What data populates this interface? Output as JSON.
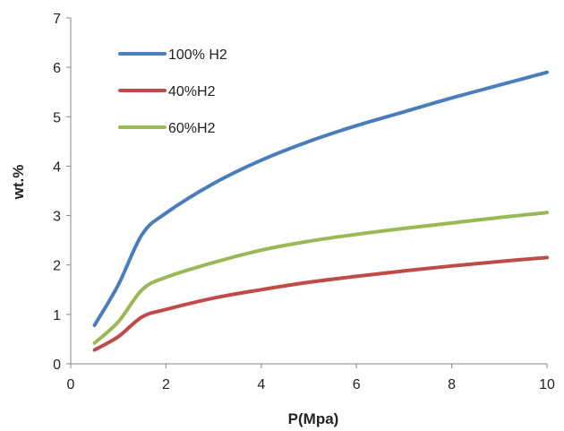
{
  "chart_data": {
    "type": "line",
    "title": "",
    "xlabel": "P(Mpa)",
    "ylabel": "wt.%",
    "xlim": [
      0,
      10
    ],
    "ylim": [
      0,
      7
    ],
    "xticks": [
      0,
      2,
      4,
      6,
      8,
      10
    ],
    "yticks": [
      0,
      1,
      2,
      3,
      4,
      5,
      6,
      7
    ],
    "grid": false,
    "legend_position": "top-left",
    "series": [
      {
        "name": "100% H2",
        "color": "#4a7ebb",
        "x": [
          0.5,
          1.0,
          1.5,
          2.0,
          3.0,
          4.0,
          5.0,
          6.0,
          7.0,
          8.0,
          9.0,
          10.0
        ],
        "y": [
          0.78,
          1.6,
          2.62,
          3.05,
          3.65,
          4.12,
          4.5,
          4.82,
          5.1,
          5.38,
          5.64,
          5.9
        ]
      },
      {
        "name": "40%H2",
        "color": "#be4b48",
        "x": [
          0.5,
          1.0,
          1.5,
          2.0,
          3.0,
          4.0,
          5.0,
          6.0,
          7.0,
          8.0,
          9.0,
          10.0
        ],
        "y": [
          0.28,
          0.55,
          0.95,
          1.1,
          1.33,
          1.5,
          1.65,
          1.77,
          1.88,
          1.98,
          2.07,
          2.15
        ]
      },
      {
        "name": "60%H2",
        "color": "#98b954",
        "x": [
          0.5,
          1.0,
          1.5,
          2.0,
          3.0,
          4.0,
          5.0,
          6.0,
          7.0,
          8.0,
          9.0,
          10.0
        ],
        "y": [
          0.42,
          0.85,
          1.5,
          1.75,
          2.05,
          2.3,
          2.48,
          2.62,
          2.74,
          2.85,
          2.96,
          3.06
        ]
      }
    ]
  }
}
